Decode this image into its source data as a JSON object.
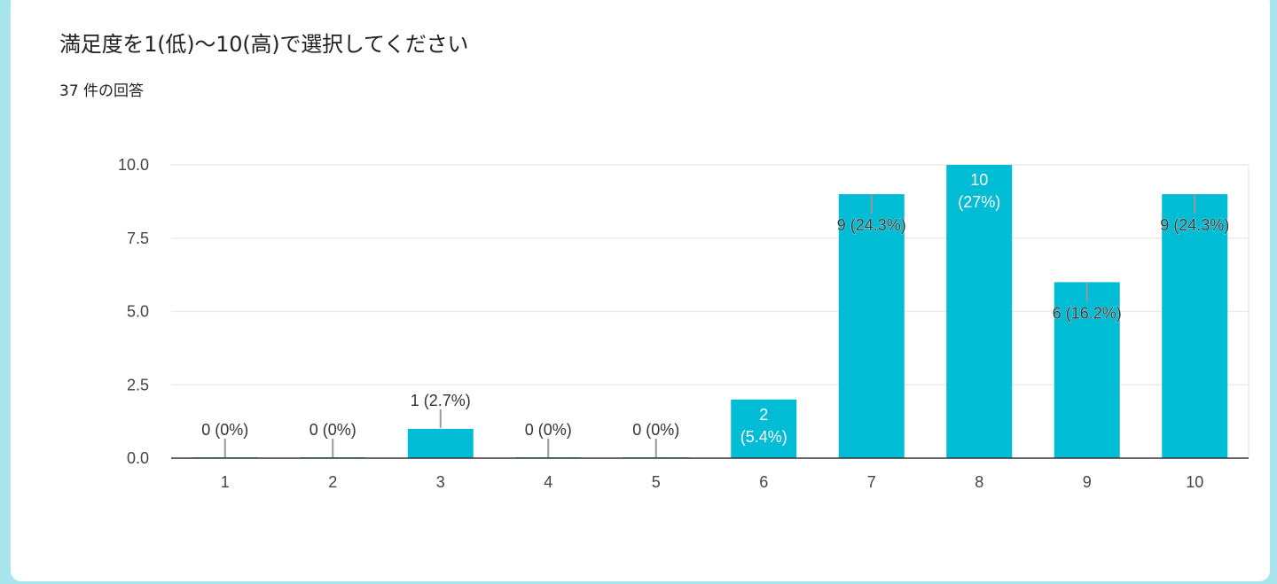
{
  "card": {
    "title": "満足度を1(低)〜10(高)で選択してください",
    "response_count": "37 件の回答"
  },
  "colors": {
    "background": "#a8e4ec",
    "card": "#ffffff",
    "bar": "#00bcd4",
    "gridline": "#ebebeb",
    "axis": "#333333",
    "leader": "#999999",
    "text": "#202124"
  },
  "chart_data": {
    "type": "bar",
    "title": "満足度を1(低)〜10(高)で選択してください",
    "subtitle": "37 件の回答",
    "categories": [
      "1",
      "2",
      "3",
      "4",
      "5",
      "6",
      "7",
      "8",
      "9",
      "10"
    ],
    "values": [
      0,
      0,
      1,
      0,
      0,
      2,
      9,
      10,
      6,
      9
    ],
    "labels": [
      "0 (0%)",
      "0 (0%)",
      "1 (2.7%)",
      "0 (0%)",
      "0 (0%)",
      "2 (5.4%)",
      "9 (24.3%)",
      "10 (27%)",
      "6 (16.2%)",
      "9 (24.3%)"
    ],
    "yticks": [
      "0.0",
      "2.5",
      "5.0",
      "7.5",
      "10.0"
    ],
    "ylim": [
      0,
      10
    ],
    "grid": true,
    "legend": "none",
    "xlabel": "",
    "ylabel": ""
  }
}
